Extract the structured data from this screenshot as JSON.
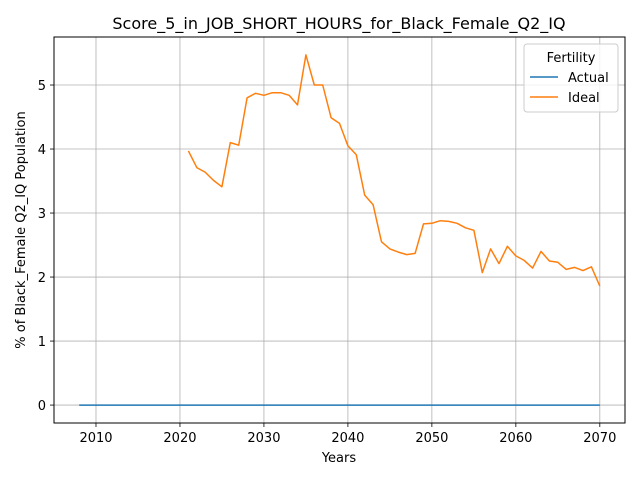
{
  "chart_data": {
    "type": "line",
    "title": "Score_5_in_JOB_SHORT_HOURS_for_Black_Female_Q2_IQ",
    "xlabel": "Years",
    "ylabel": "% of Black_Female Q2_IQ Population",
    "xlim": [
      2005,
      2073
    ],
    "ylim": [
      -0.28,
      5.75
    ],
    "xticks": [
      2010,
      2020,
      2030,
      2040,
      2050,
      2060,
      2070
    ],
    "yticks": [
      0,
      1,
      2,
      3,
      4,
      5
    ],
    "grid": true,
    "legend": {
      "title": "Fertility",
      "placement": "top-right"
    },
    "series": [
      {
        "name": "Actual",
        "color": "#1f77b4",
        "x": [
          2008,
          2070
        ],
        "y": [
          0,
          0
        ]
      },
      {
        "name": "Ideal",
        "color": "#ff7f0e",
        "x": [
          2021,
          2022,
          2023,
          2024,
          2025,
          2026,
          2027,
          2028,
          2029,
          2030,
          2031,
          2032,
          2033,
          2034,
          2035,
          2036,
          2037,
          2038,
          2039,
          2040,
          2041,
          2042,
          2043,
          2044,
          2045,
          2046,
          2047,
          2048,
          2049,
          2050,
          2051,
          2052,
          2053,
          2054,
          2055,
          2056,
          2057,
          2058,
          2059,
          2060,
          2061,
          2062,
          2063,
          2064,
          2065,
          2066,
          2067,
          2068,
          2069,
          2070
        ],
        "y": [
          3.97,
          3.71,
          3.64,
          3.51,
          3.41,
          4.1,
          4.06,
          4.8,
          4.87,
          4.84,
          4.88,
          4.88,
          4.84,
          4.69,
          5.47,
          5.0,
          5.0,
          4.49,
          4.4,
          4.05,
          3.91,
          3.28,
          3.13,
          2.55,
          2.44,
          2.39,
          2.35,
          2.37,
          2.83,
          2.84,
          2.88,
          2.87,
          2.84,
          2.77,
          2.73,
          2.07,
          2.44,
          2.21,
          2.48,
          2.33,
          2.26,
          2.14,
          2.4,
          2.25,
          2.23,
          2.12,
          2.15,
          2.1,
          2.16,
          1.86
        ]
      }
    ]
  }
}
